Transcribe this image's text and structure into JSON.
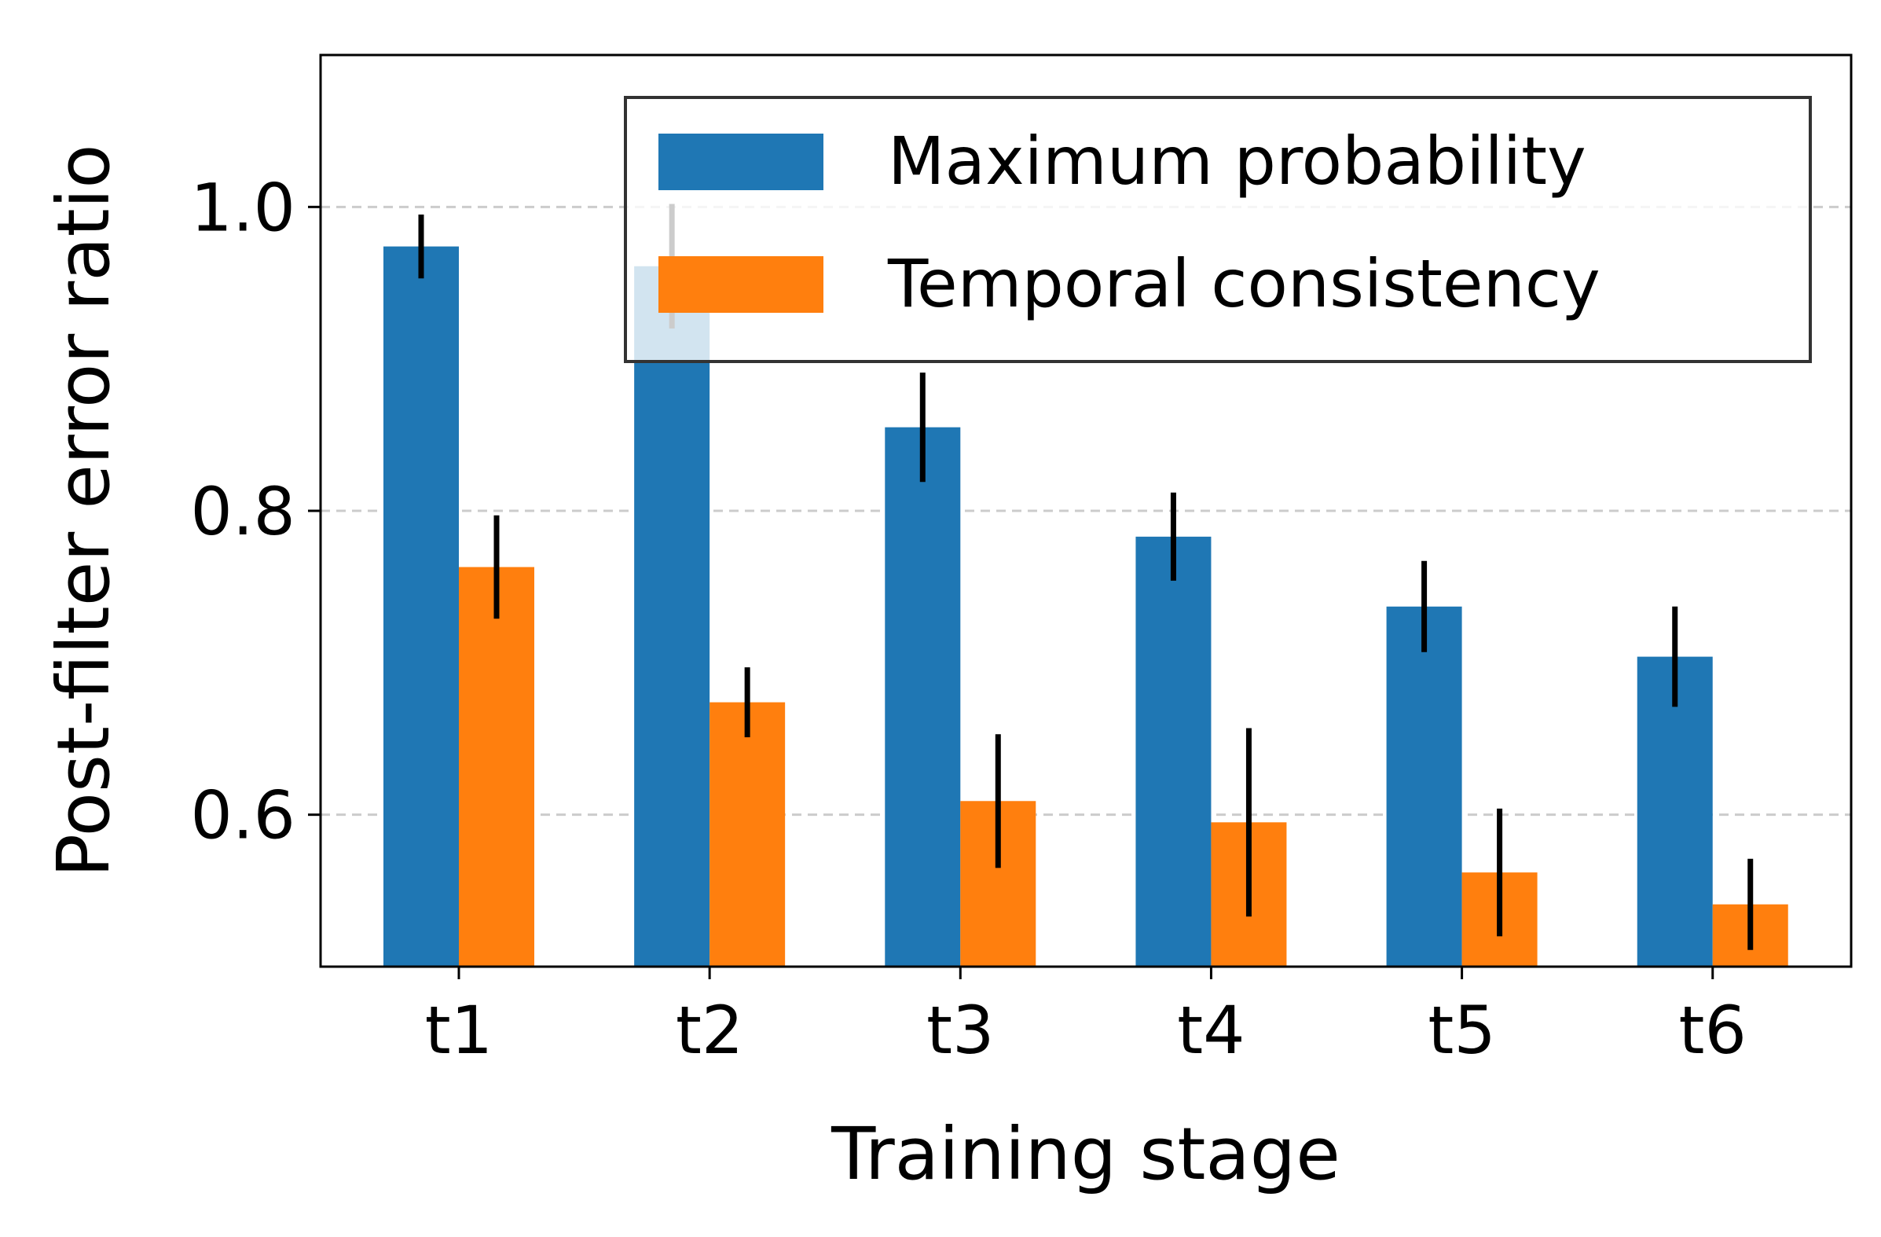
{
  "chart_data": {
    "type": "bar",
    "title": "",
    "xlabel": "Training stage",
    "ylabel": "Post-filter error ratio",
    "categories": [
      "t1",
      "t2",
      "t3",
      "t4",
      "t5",
      "t6"
    ],
    "ylim": [
      0.5,
      1.1
    ],
    "yticks": [
      0.6,
      0.8,
      1.0
    ],
    "ytick_labels": [
      "0.6",
      "0.8",
      "1.0"
    ],
    "grid": "y-dashed",
    "legend_position": "top-right",
    "series": [
      {
        "name": "Maximum probability",
        "color": "#1f77b4",
        "values": [
          0.974,
          0.961,
          0.855,
          0.783,
          0.737,
          0.704
        ],
        "errors": [
          0.021,
          0.041,
          0.036,
          0.029,
          0.03,
          0.033
        ]
      },
      {
        "name": "Temporal consistency",
        "color": "#ff7f0e",
        "values": [
          0.763,
          0.674,
          0.609,
          0.595,
          0.562,
          0.541
        ],
        "errors": [
          0.034,
          0.023,
          0.044,
          0.062,
          0.042,
          0.03
        ]
      }
    ]
  }
}
